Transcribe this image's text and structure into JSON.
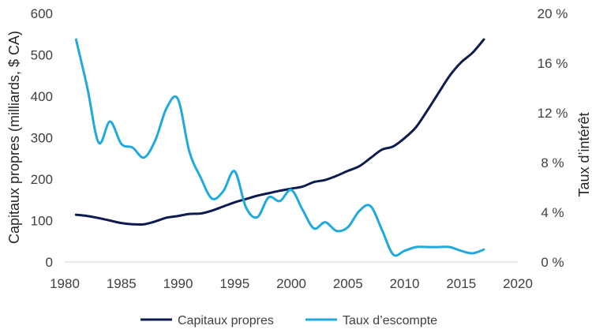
{
  "chart_data": {
    "type": "line",
    "title": "",
    "xlabel": "",
    "ylabel": "Capitaux propres (milliards, $ CA)",
    "y2label": "Taux d’intérêt",
    "xlim": [
      1980,
      2020
    ],
    "ylim": [
      0,
      600
    ],
    "y2lim": [
      0,
      20
    ],
    "x_ticks": [
      1980,
      1985,
      1990,
      1995,
      2000,
      2005,
      2010,
      2015,
      2020
    ],
    "x_tick_labels": [
      "1980",
      "1985",
      "1990",
      "1995",
      "2000",
      "2005",
      "2010",
      "2015",
      "2020"
    ],
    "y_ticks": [
      0,
      100,
      200,
      300,
      400,
      500,
      600
    ],
    "y_tick_labels": [
      "0",
      "100",
      "200",
      "300",
      "400",
      "500",
      "600"
    ],
    "y2_ticks": [
      0,
      4,
      8,
      12,
      16,
      20
    ],
    "y2_tick_labels": [
      "0 %",
      "4 %",
      "8 %",
      "12 %",
      "16 %",
      "20 %"
    ],
    "grid": false,
    "legend_position": "bottom",
    "series": [
      {
        "name": "Capitaux propres",
        "axis": "left",
        "color": "#0d1b4f",
        "x": [
          1981,
          1982,
          1983,
          1984,
          1985,
          1986,
          1987,
          1988,
          1989,
          1990,
          1991,
          1992,
          1993,
          1994,
          1995,
          1996,
          1997,
          1998,
          1999,
          2000,
          2001,
          2002,
          2003,
          2004,
          2005,
          2006,
          2007,
          2008,
          2009,
          2010,
          2011,
          2012,
          2013,
          2014,
          2015,
          2016,
          2017
        ],
        "values": [
          114,
          111,
          106,
          100,
          94,
          91,
          91,
          98,
          107,
          111,
          116,
          117,
          124,
          134,
          144,
          152,
          160,
          166,
          172,
          177,
          182,
          193,
          198,
          208,
          220,
          231,
          251,
          271,
          279,
          299,
          325,
          365,
          408,
          450,
          482,
          505,
          537
        ]
      },
      {
        "name": "Taux d’escompte",
        "axis": "right",
        "color": "#20a9dc",
        "x": [
          1981,
          1982,
          1983,
          1984,
          1985,
          1986,
          1987,
          1988,
          1989,
          1990,
          1991,
          1992,
          1993,
          1994,
          1995,
          1996,
          1997,
          1998,
          1999,
          2000,
          2001,
          2002,
          2003,
          2004,
          2005,
          2006,
          2007,
          2008,
          2009,
          2010,
          2011,
          2012,
          2013,
          2014,
          2015,
          2016,
          2017
        ],
        "values": [
          17.9,
          14.0,
          9.6,
          11.3,
          9.5,
          9.2,
          8.4,
          9.8,
          12.4,
          13.1,
          8.9,
          6.8,
          5.1,
          5.7,
          7.3,
          4.4,
          3.6,
          5.2,
          4.9,
          5.8,
          4.2,
          2.7,
          3.2,
          2.5,
          2.8,
          4.1,
          4.5,
          2.6,
          0.6,
          0.9,
          1.2,
          1.2,
          1.2,
          1.2,
          0.9,
          0.7,
          1.0
        ]
      }
    ]
  }
}
